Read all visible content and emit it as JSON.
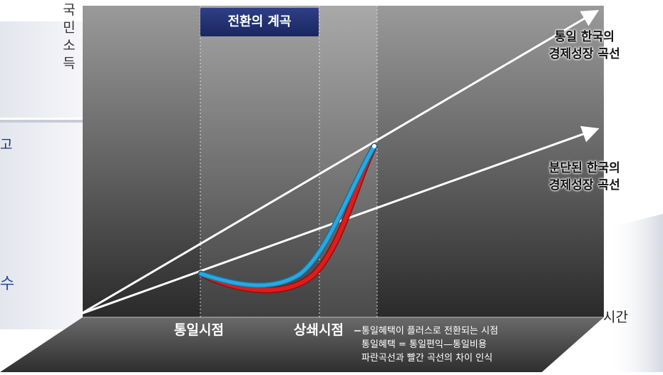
{
  "y_axis": {
    "label": "국\n민\n소\n득"
  },
  "x_axis": {
    "label": "시간"
  },
  "band": {
    "title": "전환의 계곡"
  },
  "lines": {
    "unified": {
      "label": "통일 한국의\n경제성장 곡선"
    },
    "divided": {
      "label": "분단된 한국의\n경제성장 곡선"
    }
  },
  "time_points": {
    "unification": "통일시점",
    "offset": "상쇄시점"
  },
  "notes": [
    "통일혜택이 플러스로 전환되는 시점",
    "통일혜택 = 통일편익—통일비용",
    "파란곡선과 빨간 곡선의 차이 인식"
  ],
  "left_edge_fragments": {
    "a": "고",
    "b": "수"
  },
  "colors": {
    "blue_curve": "#29a8e0",
    "red_curve": "#e01b1b",
    "band_title_bg": "#1f2b6b"
  }
}
